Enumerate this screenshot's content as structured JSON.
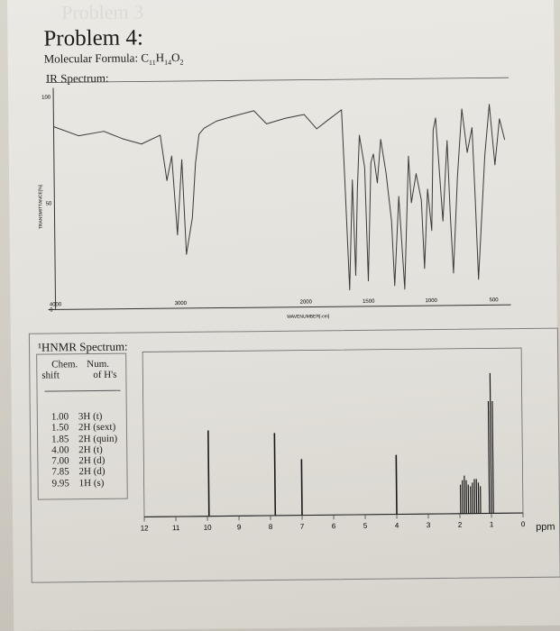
{
  "problem": {
    "ghost_heading": "Problem 3",
    "title": "Problem 4:",
    "formula_prefix": "Molecular Formula: ",
    "formula_C": "C",
    "formula_C_sub": "11",
    "formula_H": "H",
    "formula_H_sub": "14",
    "formula_O": "O",
    "formula_O_sub": "2"
  },
  "ir": {
    "label": "IR Spectrum:",
    "y_axis_label": "TRANSMITTANCE[%]",
    "x_axis_label": "WAVENUMBER[-cm]",
    "y_ticks": [
      "100",
      "50",
      "0"
    ],
    "x_ticks": [
      "4000",
      "3000",
      "2000",
      "1500",
      "1000",
      "500"
    ]
  },
  "hnmr": {
    "title": "¹HNMR Spectrum:",
    "col1_line1": "Chem.",
    "col1_line2": "shift",
    "col2_line1": "Num.",
    "col2_line2": "of H's",
    "rows": [
      {
        "shift": "1.00",
        "hs": "3H (t)"
      },
      {
        "shift": "1.50",
        "hs": "2H (sext)"
      },
      {
        "shift": "1.85",
        "hs": "2H (quin)"
      },
      {
        "shift": "4.00",
        "hs": "2H (t)"
      },
      {
        "shift": "7.00",
        "hs": "2H (d)"
      },
      {
        "shift": "7.85",
        "hs": "2H (d)"
      },
      {
        "shift": "9.95",
        "hs": "1H (s)"
      }
    ],
    "x_ticks": [
      "12",
      "11",
      "10",
      "9",
      "8",
      "7",
      "6",
      "5",
      "4",
      "3",
      "2",
      "1",
      "0"
    ],
    "unit": "ppm"
  },
  "chart_data": [
    {
      "type": "line",
      "title": "IR Spectrum:",
      "xlabel": "WAVENUMBER[-cm]",
      "ylabel": "TRANSMITTANCE[%]",
      "xlim": [
        4000,
        400
      ],
      "ylim": [
        0,
        100
      ],
      "x": [
        4000,
        3800,
        3600,
        3450,
        3300,
        3150,
        3100,
        3060,
        3020,
        2980,
        2950,
        2900,
        2870,
        2840,
        2800,
        2700,
        2550,
        2400,
        2300,
        2150,
        2000,
        1900,
        1800,
        1700,
        1680,
        1650,
        1620,
        1600,
        1580,
        1560,
        1520,
        1500,
        1470,
        1450,
        1420,
        1390,
        1350,
        1310,
        1290,
        1250,
        1210,
        1170,
        1150,
        1110,
        1070,
        1050,
        1020,
        990,
        970,
        950,
        900,
        860,
        840,
        820,
        780,
        740,
        700,
        660,
        640,
        620,
        560,
        520,
        480,
        440,
        400
      ],
      "y": [
        86,
        82,
        84,
        80,
        77,
        81,
        60,
        72,
        35,
        70,
        25,
        42,
        68,
        82,
        85,
        88,
        90,
        92,
        86,
        89,
        91,
        84,
        88,
        92,
        60,
        8,
        60,
        15,
        55,
        80,
        65,
        12,
        68,
        72,
        58,
        78,
        62,
        40,
        10,
        52,
        8,
        70,
        48,
        62,
        50,
        18,
        55,
        35,
        82,
        88,
        40,
        78,
        42,
        15,
        60,
        92,
        72,
        84,
        50,
        12,
        70,
        94,
        66,
        88,
        78
      ]
    },
    {
      "type": "bar",
      "title": "¹HNMR Spectrum:",
      "xlabel": "ppm",
      "xlim": [
        12,
        0
      ],
      "x": [
        9.95,
        7.85,
        7.0,
        4.0,
        1.85,
        1.5,
        1.0
      ],
      "values": [
        0.52,
        0.5,
        0.34,
        0.36,
        0.23,
        0.22,
        0.85
      ]
    }
  ]
}
